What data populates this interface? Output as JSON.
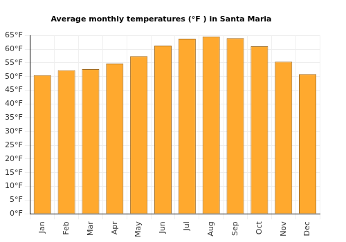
{
  "chart_data": {
    "type": "bar",
    "title": "Average monthly temperatures (°F ) in Santa Maria",
    "categories": [
      "Jan",
      "Feb",
      "Mar",
      "Apr",
      "May",
      "Jun",
      "Jul",
      "Aug",
      "Sep",
      "Oct",
      "Nov",
      "Dec"
    ],
    "values": [
      50.5,
      52.3,
      52.7,
      54.7,
      57.4,
      61.3,
      63.8,
      64.6,
      64.0,
      61.0,
      55.4,
      50.9
    ],
    "color": "#ffa92e",
    "ylim": [
      0,
      65
    ],
    "yticks": [
      {
        "value": 0,
        "label": "0°F"
      },
      {
        "value": 5,
        "label": "5°F"
      },
      {
        "value": 10,
        "label": "10°F"
      },
      {
        "value": 15,
        "label": "15°F"
      },
      {
        "value": 20,
        "label": "20°F"
      },
      {
        "value": 25,
        "label": "25°F"
      },
      {
        "value": 30,
        "label": "30°F"
      },
      {
        "value": 35,
        "label": "35°F"
      },
      {
        "value": 40,
        "label": "40°F"
      },
      {
        "value": 45,
        "label": "45°F"
      },
      {
        "value": 50,
        "label": "50°F"
      },
      {
        "value": 55,
        "label": "55°F"
      },
      {
        "value": 60,
        "label": "60°F"
      },
      {
        "value": 65,
        "label": "65°F"
      }
    ],
    "grid": true
  }
}
